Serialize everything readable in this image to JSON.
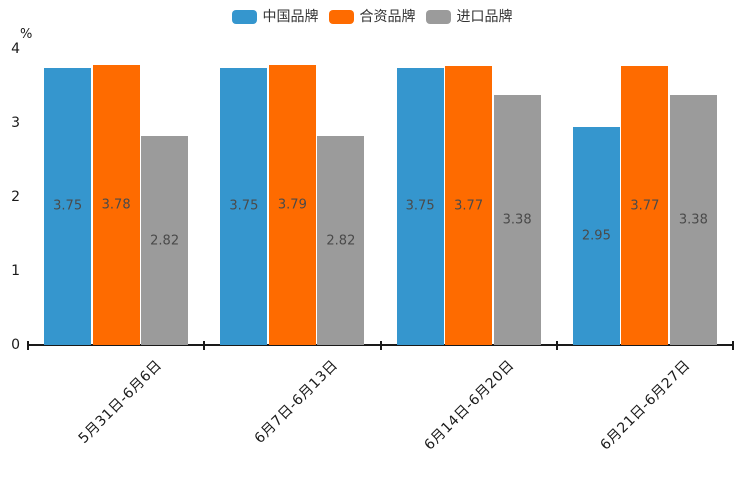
{
  "chart_data": {
    "type": "bar",
    "title": "",
    "unit_label": "%",
    "categories": [
      "5月31日-6月6日",
      "6月7日-6月13日",
      "6月14日-6月20日",
      "6月21日-6月27日"
    ],
    "series": [
      {
        "name": "中国品牌",
        "color": "#3596CE",
        "values": [
          3.75,
          3.75,
          3.75,
          2.95
        ]
      },
      {
        "name": "合资品牌",
        "color": "#FE6B00",
        "values": [
          3.78,
          3.79,
          3.77,
          3.77
        ]
      },
      {
        "name": "进口品牌",
        "color": "#9B9B9B",
        "values": [
          2.82,
          2.82,
          3.38,
          3.38
        ]
      }
    ],
    "ylim": [
      0,
      4
    ],
    "yticks": [
      0,
      1,
      2,
      3,
      4
    ],
    "grid": false,
    "legend_position": "top-center",
    "bar_labels": "inside-center",
    "x_label_rotation_deg": 45,
    "colors": {
      "axis": "#1a1a1a",
      "bar_label_text": "#4a4a4a",
      "legend_text": "#333333",
      "background": "#ffffff"
    }
  }
}
